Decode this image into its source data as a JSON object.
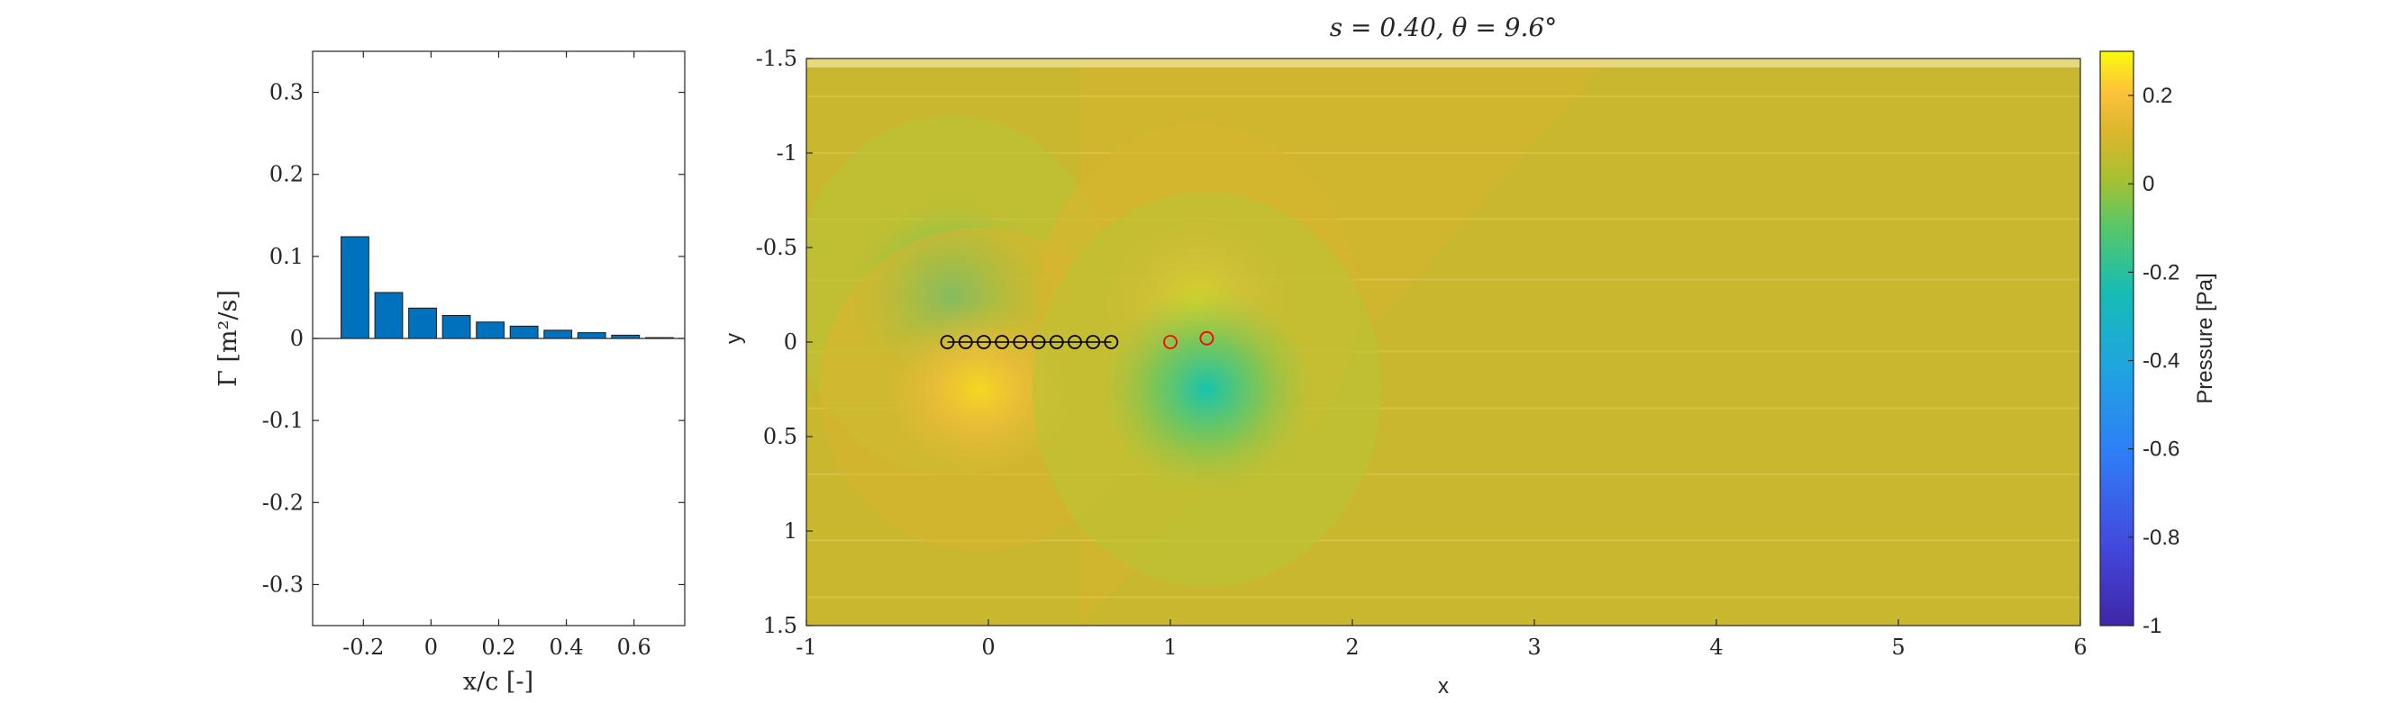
{
  "chart_data": [
    {
      "type": "bar",
      "xlabel": "x/c [-]",
      "ylabel": "Γ [m²/s]",
      "xlim": [
        -0.35,
        0.75
      ],
      "ylim": [
        -0.35,
        0.35
      ],
      "xticks": [
        "-0.2",
        "0",
        "0.2",
        "0.4",
        "0.6"
      ],
      "yticks": [
        "-0.3",
        "-0.2",
        "-0.1",
        "0",
        "0.1",
        "0.2",
        "0.3"
      ],
      "bar_color": "#0072BD",
      "x": [
        -0.225,
        -0.125,
        -0.025,
        0.075,
        0.175,
        0.275,
        0.375,
        0.475,
        0.575,
        0.675
      ],
      "values": [
        0.124,
        0.056,
        0.037,
        0.028,
        0.02,
        0.015,
        0.01,
        0.007,
        0.004,
        0.001
      ]
    },
    {
      "type": "heatmap",
      "title": "s = 0.40, θ = 9.6°",
      "xlabel": "x",
      "ylabel": "y",
      "xlim": [
        -1,
        6
      ],
      "ylim": [
        -1.5,
        1.5
      ],
      "y_direction": "reversed",
      "xticks": [
        "-1",
        "0",
        "1",
        "2",
        "3",
        "4",
        "5",
        "6"
      ],
      "yticks": [
        "-1.5",
        "-1",
        "-0.5",
        "0",
        "0.5",
        "1",
        "1.5"
      ],
      "colorbar": {
        "label": "Pressure [Pa]",
        "range": [
          -1,
          0.3
        ],
        "ticks": [
          "0.2",
          "0",
          "-0.2",
          "-0.4",
          "-0.6",
          "-0.8",
          "-1"
        ],
        "colormap": "parula"
      },
      "field_baseline": 0.0,
      "pressure_features": [
        {
          "x": -0.2,
          "y": -0.25,
          "value": -0.25
        },
        {
          "x": -0.05,
          "y": 0.25,
          "value": 0.12
        },
        {
          "x": 1.15,
          "y": -0.2,
          "value": 0.18
        },
        {
          "x": 1.2,
          "y": 0.25,
          "value": -0.3
        }
      ],
      "panel_points": {
        "color": "#000000",
        "x": [
          -0.225,
          -0.125,
          -0.025,
          0.075,
          0.175,
          0.275,
          0.375,
          0.475,
          0.575,
          0.675
        ],
        "y": [
          0,
          0,
          0,
          0,
          0,
          0,
          0,
          0,
          0,
          0
        ]
      },
      "wake_points": {
        "color": "#FF0000",
        "x": [
          1.0,
          1.2
        ],
        "y": [
          0.0,
          -0.02
        ]
      }
    }
  ]
}
